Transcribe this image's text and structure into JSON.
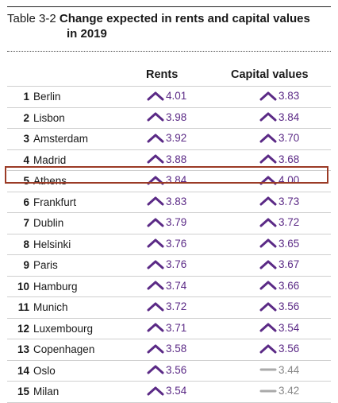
{
  "title": {
    "prefix": "Table 3-2",
    "main_line1": "Change expected in rents and capital values",
    "main_line2": "in 2019"
  },
  "columns": {
    "rents": "Rents",
    "capital": "Capital values"
  },
  "colors": {
    "up_arrow": "#5b2a86",
    "flat": "#aaaaaa",
    "highlight_border": "#9b3b26"
  },
  "rows": [
    {
      "rank": "1",
      "city": "Berlin",
      "rents": "4.01",
      "rents_trend": "up",
      "capital": "3.83",
      "capital_trend": "up"
    },
    {
      "rank": "2",
      "city": "Lisbon",
      "rents": "3.98",
      "rents_trend": "up",
      "capital": "3.84",
      "capital_trend": "up"
    },
    {
      "rank": "3",
      "city": "Amsterdam",
      "rents": "3.92",
      "rents_trend": "up",
      "capital": "3.70",
      "capital_trend": "up"
    },
    {
      "rank": "4",
      "city": "Madrid",
      "rents": "3.88",
      "rents_trend": "up",
      "capital": "3.68",
      "capital_trend": "up"
    },
    {
      "rank": "5",
      "city": "Athens",
      "rents": "3.84",
      "rents_trend": "up",
      "capital": "4.00",
      "capital_trend": "up"
    },
    {
      "rank": "6",
      "city": "Frankfurt",
      "rents": "3.83",
      "rents_trend": "up",
      "capital": "3.73",
      "capital_trend": "up"
    },
    {
      "rank": "7",
      "city": "Dublin",
      "rents": "3.79",
      "rents_trend": "up",
      "capital": "3.72",
      "capital_trend": "up"
    },
    {
      "rank": "8",
      "city": "Helsinki",
      "rents": "3.76",
      "rents_trend": "up",
      "capital": "3.65",
      "capital_trend": "up"
    },
    {
      "rank": "9",
      "city": "Paris",
      "rents": "3.76",
      "rents_trend": "up",
      "capital": "3.67",
      "capital_trend": "up"
    },
    {
      "rank": "10",
      "city": "Hamburg",
      "rents": "3.74",
      "rents_trend": "up",
      "capital": "3.66",
      "capital_trend": "up"
    },
    {
      "rank": "11",
      "city": "Munich",
      "rents": "3.72",
      "rents_trend": "up",
      "capital": "3.56",
      "capital_trend": "up"
    },
    {
      "rank": "12",
      "city": "Luxembourg",
      "rents": "3.71",
      "rents_trend": "up",
      "capital": "3.54",
      "capital_trend": "up"
    },
    {
      "rank": "13",
      "city": "Copenhagen",
      "rents": "3.58",
      "rents_trend": "up",
      "capital": "3.56",
      "capital_trend": "up"
    },
    {
      "rank": "14",
      "city": "Oslo",
      "rents": "3.56",
      "rents_trend": "up",
      "capital": "3.44",
      "capital_trend": "flat"
    },
    {
      "rank": "15",
      "city": "Milan",
      "rents": "3.54",
      "rents_trend": "up",
      "capital": "3.42",
      "capital_trend": "flat"
    }
  ],
  "highlighted_rank": "5"
}
